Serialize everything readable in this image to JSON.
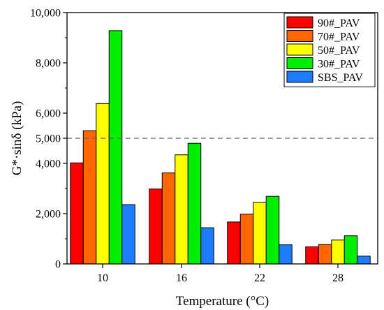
{
  "chart_data": {
    "type": "bar",
    "xlabel": "Temperature (°C)",
    "ylabel": "G*·sinδ (kPa)",
    "categories": [
      "10",
      "16",
      "22",
      "28"
    ],
    "ylim": [
      0,
      10000
    ],
    "yticks": [
      "0",
      "2,000",
      "4,000",
      "5,000",
      "6,000",
      "8,000",
      "10,000"
    ],
    "ytick_values": [
      0,
      2000,
      4000,
      5000,
      6000,
      8000,
      10000
    ],
    "reference_line": {
      "value": 5000,
      "style": "dashed"
    },
    "legend_position": "top-right",
    "grid": false,
    "series": [
      {
        "name": "90#_PAV",
        "color": "#ff0000",
        "values": [
          4020,
          2980,
          1670,
          680
        ]
      },
      {
        "name": "70#_PAV",
        "color": "#ff6600",
        "values": [
          5300,
          3620,
          1980,
          770
        ]
      },
      {
        "name": "50#_PAV",
        "color": "#ffff00",
        "values": [
          6380,
          4340,
          2450,
          950
        ]
      },
      {
        "name": "30#_PAV",
        "color": "#00ee00",
        "values": [
          9280,
          4800,
          2690,
          1120
        ]
      },
      {
        "name": "SBS_PAV",
        "color": "#1e7dff",
        "values": [
          2360,
          1440,
          760,
          310
        ]
      }
    ]
  }
}
